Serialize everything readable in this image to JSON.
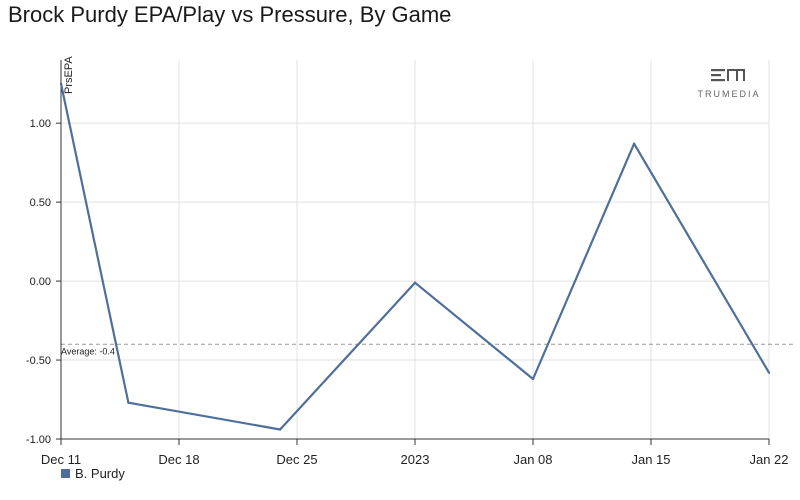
{
  "title": "Brock Purdy EPA/Play vs Pressure, By Game",
  "logo": {
    "text": "TRUMEDIA"
  },
  "chart_data": {
    "type": "line",
    "title": "Brock Purdy EPA/Play vs Pressure, By Game",
    "ylabel": "PrsEPA",
    "xlabel": "",
    "x_ticks": [
      "Dec 11",
      "Dec 18",
      "Dec 25",
      "2023",
      "Jan 08",
      "Jan 15",
      "Jan 22"
    ],
    "y_ticks": [
      "1.00",
      "0.50",
      "0.00",
      "-0.50",
      "-1.00"
    ],
    "y_tick_values": [
      1.0,
      0.5,
      0.0,
      -0.5,
      -1.0
    ],
    "ylim": [
      -1.0,
      1.4
    ],
    "xlim": [
      "2022-12-11",
      "2023-01-22"
    ],
    "grid": true,
    "legend": "bottom-left",
    "series": [
      {
        "name": "B. Purdy",
        "color": "#4e6f9b",
        "points": [
          {
            "x": "2022-12-11",
            "y": 1.25
          },
          {
            "x": "2022-12-15",
            "y": -0.77
          },
          {
            "x": "2022-12-24",
            "y": -0.94
          },
          {
            "x": "2023-01-01",
            "y": -0.01
          },
          {
            "x": "2023-01-08",
            "y": -0.62
          },
          {
            "x": "2023-01-14",
            "y": 0.87
          },
          {
            "x": "2023-01-22",
            "y": -0.58
          }
        ]
      }
    ],
    "average": {
      "label": "Average: -0.4",
      "value": -0.4
    }
  }
}
